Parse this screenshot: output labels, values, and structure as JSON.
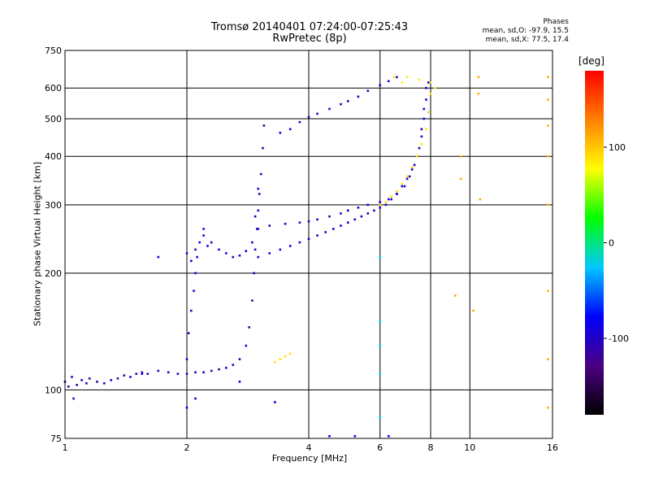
{
  "chart_data": {
    "type": "scatter",
    "title": "Tromsø 20140401 07:24:00-07:25:43",
    "subtitle": "RwPretec (8p)",
    "xlabel": "Frequency [MHz]",
    "ylabel": "Stationary phase Virtual Height [km]",
    "x_scale": "log",
    "y_scale": "log",
    "xlim": [
      1,
      16
    ],
    "ylim": [
      75,
      750
    ],
    "x_ticks": [
      1,
      2,
      4,
      6,
      8,
      10,
      16
    ],
    "y_ticks": [
      75,
      100,
      200,
      300,
      400,
      500,
      600,
      750
    ],
    "grid": true,
    "phases": {
      "heading": "Phases",
      "o_mode": "mean, sd,O: -97.9, 15.5",
      "x_mode": "mean, sd,X:  77.5, 17.4"
    },
    "colorbar": {
      "unit": "[deg]",
      "range": [
        -180,
        180
      ],
      "ticks": [
        100,
        0,
        -100
      ],
      "colors": [
        "#000000",
        "#4b0082",
        "#0000ff",
        "#00c8ff",
        "#00ff00",
        "#ffff00",
        "#ff8000",
        "#ff0000"
      ]
    },
    "series": [
      {
        "points": [
          [
            1.0,
            105
          ],
          [
            1.02,
            102
          ],
          [
            1.04,
            108
          ],
          [
            1.05,
            95
          ],
          [
            1.07,
            103
          ],
          [
            1.1,
            106
          ],
          [
            1.13,
            104
          ],
          [
            1.15,
            107
          ],
          [
            1.2,
            105
          ],
          [
            1.25,
            104
          ],
          [
            1.3,
            106
          ],
          [
            1.35,
            107
          ],
          [
            1.4,
            109
          ],
          [
            1.45,
            108
          ],
          [
            1.5,
            110
          ],
          [
            1.55,
            111
          ],
          [
            1.6,
            110
          ],
          [
            1.7,
            112
          ],
          [
            1.8,
            111
          ],
          [
            1.9,
            110
          ],
          [
            2.0,
            110
          ],
          [
            2.1,
            111
          ],
          [
            2.2,
            111
          ],
          [
            2.3,
            112
          ],
          [
            2.4,
            113
          ],
          [
            2.5,
            114
          ],
          [
            2.6,
            116
          ],
          [
            2.7,
            120
          ],
          [
            2.8,
            130
          ],
          [
            2.85,
            145
          ],
          [
            2.9,
            170
          ],
          [
            2.93,
            200
          ],
          [
            2.95,
            230
          ],
          [
            2.98,
            260
          ],
          [
            3.0,
            290
          ],
          [
            3.02,
            320
          ],
          [
            3.05,
            360
          ],
          [
            3.08,
            420
          ],
          [
            3.1,
            480
          ]
        ],
        "phase": -105
      },
      {
        "points": [
          [
            2.0,
            225
          ],
          [
            2.05,
            215
          ],
          [
            2.1,
            230
          ],
          [
            2.15,
            240
          ],
          [
            2.2,
            260
          ],
          [
            2.25,
            235
          ],
          [
            2.3,
            240
          ],
          [
            2.4,
            230
          ],
          [
            2.5,
            225
          ],
          [
            2.6,
            220
          ],
          [
            2.7,
            222
          ],
          [
            2.8,
            228
          ],
          [
            2.9,
            240
          ],
          [
            2.95,
            280
          ],
          [
            3.0,
            330
          ]
        ],
        "phase": -90
      },
      {
        "points": [
          [
            2.0,
            120
          ],
          [
            2.02,
            140
          ],
          [
            2.05,
            160
          ],
          [
            2.08,
            180
          ],
          [
            2.1,
            200
          ],
          [
            2.12,
            220
          ]
        ],
        "phase": -100
      },
      {
        "points": [
          [
            3.0,
            220
          ],
          [
            3.2,
            225
          ],
          [
            3.4,
            230
          ],
          [
            3.6,
            235
          ],
          [
            3.8,
            240
          ],
          [
            4.0,
            245
          ],
          [
            4.2,
            250
          ],
          [
            4.4,
            255
          ],
          [
            4.6,
            260
          ],
          [
            4.8,
            265
          ],
          [
            5.0,
            270
          ],
          [
            5.2,
            275
          ],
          [
            5.4,
            280
          ],
          [
            5.6,
            285
          ],
          [
            5.8,
            290
          ],
          [
            6.0,
            295
          ],
          [
            6.2,
            300
          ],
          [
            6.4,
            310
          ],
          [
            6.6,
            320
          ],
          [
            6.8,
            335
          ],
          [
            7.0,
            350
          ],
          [
            7.2,
            370
          ],
          [
            7.4,
            400
          ],
          [
            7.6,
            450
          ],
          [
            7.7,
            500
          ],
          [
            7.8,
            560
          ],
          [
            7.9,
            620
          ]
        ],
        "phase": -95
      },
      {
        "points": [
          [
            3.0,
            260
          ],
          [
            3.2,
            265
          ],
          [
            3.5,
            268
          ],
          [
            3.8,
            270
          ],
          [
            4.0,
            272
          ],
          [
            4.2,
            275
          ],
          [
            4.5,
            280
          ],
          [
            4.8,
            285
          ],
          [
            5.0,
            290
          ],
          [
            5.3,
            295
          ],
          [
            5.6,
            300
          ],
          [
            6.0,
            305
          ],
          [
            6.3,
            310
          ],
          [
            6.6,
            320
          ],
          [
            6.9,
            335
          ],
          [
            7.1,
            355
          ],
          [
            7.3,
            380
          ],
          [
            7.5,
            420
          ],
          [
            7.6,
            470
          ],
          [
            7.7,
            530
          ],
          [
            7.8,
            600
          ]
        ],
        "phase": -100
      },
      {
        "points": [
          [
            3.4,
            460
          ],
          [
            3.6,
            470
          ],
          [
            3.8,
            490
          ],
          [
            4.0,
            505
          ],
          [
            4.2,
            515
          ],
          [
            4.5,
            530
          ],
          [
            4.8,
            545
          ],
          [
            5.0,
            555
          ],
          [
            5.3,
            570
          ],
          [
            5.6,
            590
          ],
          [
            6.0,
            610
          ],
          [
            6.3,
            625
          ],
          [
            6.6,
            640
          ]
        ],
        "phase": -100
      },
      {
        "points": [
          [
            6.0,
            300
          ],
          [
            6.2,
            305
          ],
          [
            6.4,
            315
          ],
          [
            6.6,
            325
          ],
          [
            6.8,
            340
          ],
          [
            7.0,
            355
          ],
          [
            7.2,
            375
          ],
          [
            7.4,
            400
          ],
          [
            7.6,
            430
          ],
          [
            7.8,
            470
          ],
          [
            7.9,
            520
          ],
          [
            8.0,
            580
          ]
        ],
        "phase": 90
      },
      {
        "points": [
          [
            3.3,
            118
          ],
          [
            3.4,
            120
          ],
          [
            3.5,
            122
          ],
          [
            3.6,
            124
          ]
        ],
        "phase": 90
      },
      {
        "points": [
          [
            6.5,
            640
          ],
          [
            6.8,
            620
          ],
          [
            7.0,
            640
          ],
          [
            7.5,
            630
          ],
          [
            8.0,
            620
          ],
          [
            8.2,
            600
          ]
        ],
        "phase": 85
      },
      {
        "points": [
          [
            6.0,
            150
          ],
          [
            6.0,
            130
          ],
          [
            6.0,
            110
          ],
          [
            6.0,
            85
          ],
          [
            6.0,
            220
          ]
        ],
        "phase": -20
      },
      {
        "points": [
          [
            15.6,
            640
          ],
          [
            15.6,
            560
          ],
          [
            15.6,
            480
          ],
          [
            15.6,
            400
          ],
          [
            15.6,
            300
          ],
          [
            15.6,
            180
          ],
          [
            15.6,
            120
          ],
          [
            15.6,
            90
          ],
          [
            10.5,
            640
          ],
          [
            10.5,
            580
          ],
          [
            9.5,
            400
          ],
          [
            9.5,
            350
          ],
          [
            10.2,
            160
          ],
          [
            9.2,
            175
          ],
          [
            10.6,
            310
          ]
        ],
        "phase": 110
      },
      {
        "points": [
          [
            2.0,
            90
          ],
          [
            2.1,
            95
          ],
          [
            3.3,
            93
          ],
          [
            4.5,
            76
          ],
          [
            5.2,
            76
          ],
          [
            6.3,
            76
          ],
          [
            2.7,
            105
          ],
          [
            1.7,
            220
          ],
          [
            2.2,
            250
          ],
          [
            1.55,
            110
          ]
        ],
        "phase": -80
      }
    ]
  }
}
